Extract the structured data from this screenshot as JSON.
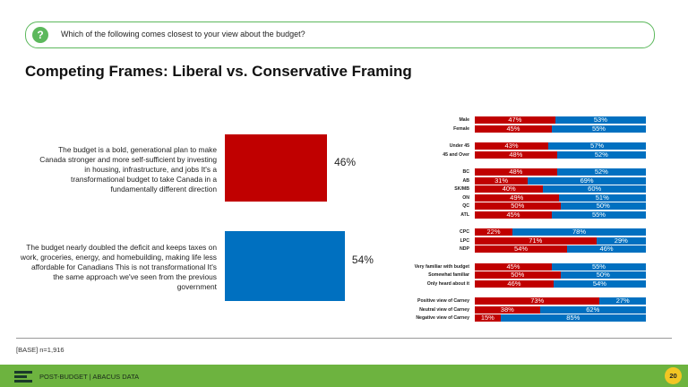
{
  "header": {
    "question": "Which of the following comes closest to your view about the budget?"
  },
  "title": "Competing Frames: Liberal vs. Conservative Framing",
  "chart_data": [
    {
      "type": "bar",
      "categories": [
        "The budget is a bold, generational plan to make Canada stronger and more self-sufficient by investing in housing, infrastructure, and jobs  It's a transformational budget to take Canada in a fundamentally different direction",
        "The budget nearly doubled the deficit and keeps taxes on work, groceries, energy, and homebuilding, making life less affordable for Canadians  This is not transformational  It's the same approach we've seen from the previous government"
      ],
      "values": [
        46,
        54
      ],
      "value_labels": [
        "46%",
        "54%"
      ],
      "colors": [
        "#c00000",
        "#0070c0"
      ]
    },
    {
      "type": "stacked_bar",
      "colors": [
        "#c00000",
        "#0070c0"
      ],
      "groups": [
        {
          "categories": [
            "Male",
            "Female"
          ],
          "series": [
            {
              "values": [
                47,
                45
              ],
              "value_labels": [
                "47%",
                "45%"
              ]
            },
            {
              "values": [
                53,
                55
              ],
              "value_labels": [
                "53%",
                "55%"
              ]
            }
          ]
        },
        {
          "categories": [
            "Under 45",
            "45 and Over"
          ],
          "series": [
            {
              "values": [
                43,
                48
              ],
              "value_labels": [
                "43%",
                "48%"
              ]
            },
            {
              "values": [
                57,
                52
              ],
              "value_labels": [
                "57%",
                "52%"
              ]
            }
          ]
        },
        {
          "categories": [
            "BC",
            "AB",
            "SK/MB",
            "ON",
            "QC",
            "ATL"
          ],
          "series": [
            {
              "values": [
                48,
                31,
                40,
                49,
                50,
                45
              ],
              "value_labels": [
                "48%",
                "31%",
                "40%",
                "49%",
                "50%",
                "45%"
              ]
            },
            {
              "values": [
                52,
                69,
                60,
                51,
                50,
                55
              ],
              "value_labels": [
                "52%",
                "69%",
                "60%",
                "51%",
                "50%",
                "55%"
              ]
            }
          ]
        },
        {
          "categories": [
            "CPC",
            "LPC",
            "NDP"
          ],
          "series": [
            {
              "values": [
                22,
                71,
                54
              ],
              "value_labels": [
                "22%",
                "71%",
                "54%"
              ]
            },
            {
              "values": [
                78,
                29,
                46
              ],
              "value_labels": [
                "78%",
                "29%",
                "46%"
              ]
            }
          ]
        },
        {
          "categories": [
            "Very familiar with budget",
            "Somewhat familiar",
            "Only heard about it"
          ],
          "series": [
            {
              "values": [
                45,
                50,
                46
              ],
              "value_labels": [
                "45%",
                "50%",
                "46%"
              ]
            },
            {
              "values": [
                55,
                50,
                54
              ],
              "value_labels": [
                "55%",
                "50%",
                "54%"
              ]
            }
          ]
        },
        {
          "categories": [
            "Positive view of Carney",
            "Neutral view of Carney",
            "Negative view of Carney"
          ],
          "series": [
            {
              "values": [
                73,
                38,
                15
              ],
              "value_labels": [
                "73%",
                "38%",
                "15%"
              ]
            },
            {
              "values": [
                27,
                62,
                85
              ],
              "value_labels": [
                "27%",
                "62%",
                "85%"
              ]
            }
          ]
        }
      ]
    }
  ],
  "base": "[BASE] n=1,916",
  "footer": {
    "source": "POST-BUDGET | ABACUS DATA",
    "page": "20"
  }
}
